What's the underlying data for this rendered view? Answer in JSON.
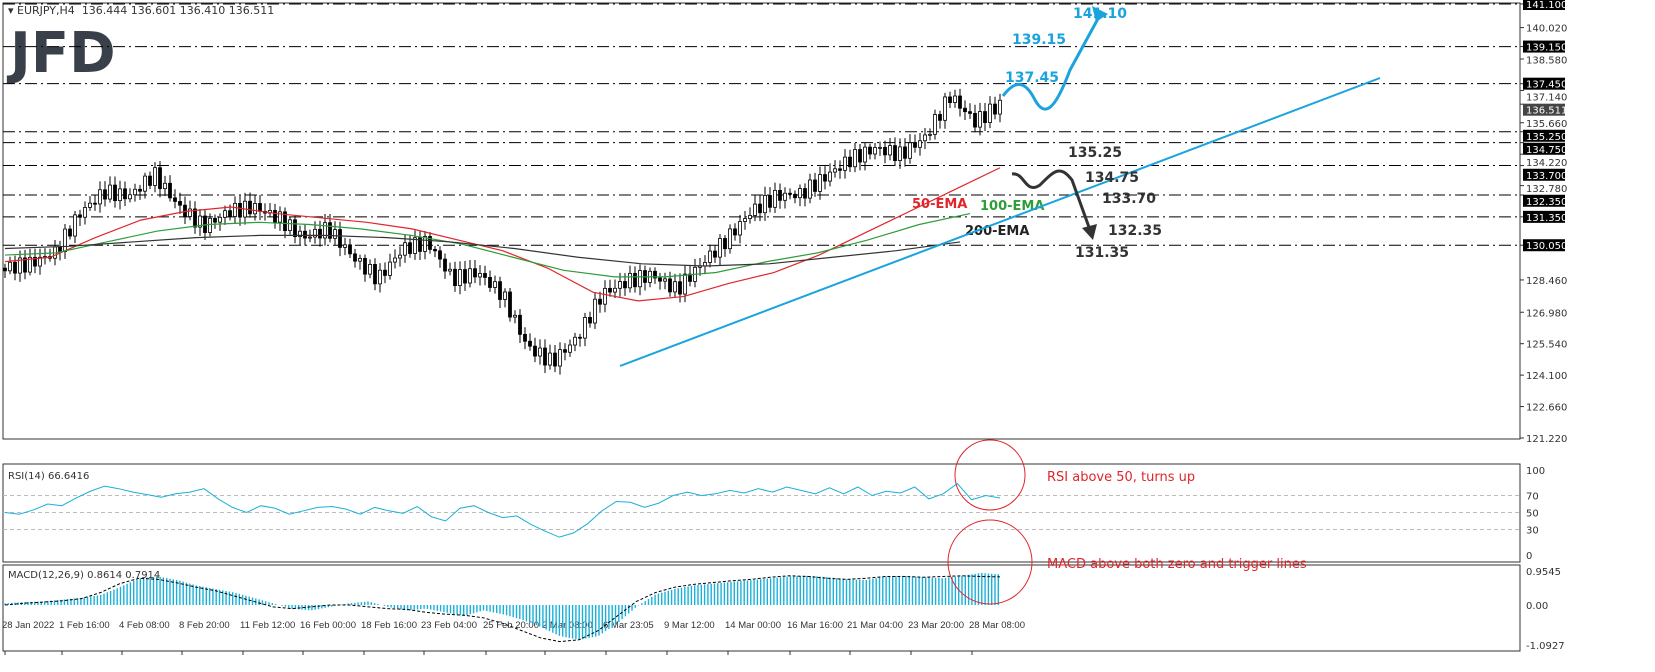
{
  "header": {
    "symbol": "EURJPY,H4",
    "ohlc": "136.444 136.601 136.410 136.511"
  },
  "logo": "JFD",
  "colors": {
    "up": "#000000",
    "ema50": "#e0262b",
    "ema100": "#2e9d3a",
    "ema200": "#333333",
    "trend": "#1aa3dc",
    "bullish": "#1aa3dc",
    "bearish": "#333333",
    "circle": "#e0262b",
    "macd": "#1ab0d8"
  },
  "chart_data": [
    {
      "type": "candlestick",
      "title": "EURJPY,H4",
      "ylim": [
        121.22,
        141.1
      ],
      "y_ticks": [
        "141.100",
        "140.020",
        "139.150",
        "138.580",
        "137.450",
        "137.140",
        "136.511",
        "135.660",
        "135.250",
        "134.750",
        "134.220",
        "133.700",
        "132.780",
        "132.350",
        "131.350",
        "130.050",
        "128.460",
        "126.980",
        "125.540",
        "124.100",
        "122.660",
        "121.220"
      ],
      "x_ticks": [
        "28 Jan 2022",
        "1 Feb 16:00",
        "4 Feb 08:00",
        "8 Feb 20:00",
        "11 Feb 12:00",
        "16 Feb 00:00",
        "18 Feb 16:00",
        "23 Feb 04:00",
        "25 Feb 20:00",
        "2 Mar 08:00",
        "6 Mar 23:05",
        "9 Mar 12:00",
        "14 Mar 00:00",
        "16 Mar 16:00",
        "21 Mar 04:00",
        "23 Mar 20:00",
        "28 Mar 08:00"
      ],
      "levels": [
        141.1,
        139.15,
        137.45,
        135.25,
        134.75,
        133.7,
        132.35,
        131.35,
        130.05
      ],
      "last_price": 136.511,
      "close_path": [
        129.0,
        129.2,
        129.7,
        131.5,
        132.5,
        132.3,
        133.3,
        131.8,
        130.9,
        131.6,
        131.8,
        131.3,
        130.4,
        130.8,
        129.5,
        128.5,
        129.9,
        130.2,
        128.5,
        128.8,
        127.8,
        125.4,
        124.7,
        125.8,
        127.8,
        128.4,
        128.7,
        128.0,
        129.2,
        130.3,
        131.6,
        132.3,
        132.4,
        133.2,
        134.0,
        134.5,
        134.2,
        135.0,
        136.9,
        135.7,
        136.5
      ],
      "ema50": [
        129.3,
        129.5,
        130.4,
        131.2,
        131.6,
        131.8,
        131.5,
        131.3,
        131.1,
        130.8,
        130.3,
        129.8,
        129.0,
        127.9,
        127.5,
        127.7,
        128.3,
        128.8,
        129.6,
        130.6,
        131.6,
        132.6,
        133.6
      ],
      "ema100": [
        129.6,
        129.7,
        130.2,
        130.7,
        131.0,
        131.1,
        131.0,
        130.8,
        130.5,
        130.1,
        129.5,
        128.9,
        128.6,
        128.6,
        128.8,
        129.3,
        129.7,
        130.3,
        131.0,
        131.5
      ],
      "ema200": [
        129.9,
        130.0,
        130.2,
        130.4,
        130.5,
        130.5,
        130.4,
        130.2,
        129.9,
        129.5,
        129.2,
        129.1,
        129.2,
        129.5,
        129.8,
        130.2
      ],
      "ema_labels": [
        "50-EMA",
        "100-EMA",
        "200-EMA"
      ],
      "annotations": {
        "up": [
          "137.45",
          "139.15",
          "141.10"
        ],
        "down": [
          "135.25",
          "134.75",
          "133.70",
          "132.35",
          "131.35"
        ]
      }
    },
    {
      "type": "line",
      "title": "RSI(14) 66.6416",
      "ylim": [
        0,
        100
      ],
      "y_ticks": [
        "100",
        "70",
        "50",
        "30",
        "0"
      ],
      "values": [
        50,
        48,
        53,
        60,
        58,
        67,
        75,
        81,
        78,
        74,
        71,
        68,
        72,
        74,
        78,
        66,
        56,
        50,
        58,
        55,
        48,
        52,
        56,
        57,
        54,
        48,
        56,
        52,
        49,
        57,
        45,
        40,
        55,
        58,
        50,
        44,
        46,
        36,
        28,
        21,
        26,
        37,
        52,
        63,
        62,
        56,
        61,
        70,
        74,
        70,
        72,
        76,
        73,
        78,
        74,
        80,
        76,
        72,
        79,
        72,
        80,
        70,
        75,
        73,
        80,
        66,
        72,
        84,
        65,
        70,
        67
      ],
      "note": "RSI above 50, turns up"
    },
    {
      "type": "bar",
      "title": "MACD(12,26,9) 0.8614 0.7914",
      "ylim": [
        -1.0927,
        0.9545
      ],
      "y_ticks": [
        "0.9545",
        "0.00",
        "-1.0927"
      ],
      "values": [
        0.05,
        0.08,
        0.1,
        0.15,
        0.2,
        0.28,
        0.5,
        0.75,
        0.8,
        0.7,
        0.55,
        0.45,
        0.35,
        0.2,
        0.05,
        -0.1,
        -0.15,
        -0.05,
        0.05,
        0.1,
        -0.05,
        -0.15,
        -0.1,
        -0.2,
        -0.3,
        -0.15,
        -0.25,
        -0.4,
        -0.6,
        -0.85,
        -0.95,
        -0.85,
        -0.5,
        -0.05,
        0.3,
        0.45,
        0.55,
        0.6,
        0.65,
        0.7,
        0.75,
        0.8,
        0.82,
        0.78,
        0.72,
        0.7,
        0.8,
        0.82,
        0.78,
        0.75,
        0.82,
        0.9,
        0.86
      ],
      "signal": [
        0.0,
        0.05,
        0.08,
        0.12,
        0.18,
        0.35,
        0.6,
        0.75,
        0.72,
        0.62,
        0.5,
        0.4,
        0.25,
        0.1,
        -0.05,
        -0.1,
        -0.05,
        0.0,
        0.0,
        -0.05,
        -0.1,
        -0.12,
        -0.2,
        -0.25,
        -0.28,
        -0.35,
        -0.5,
        -0.7,
        -0.9,
        -1.0,
        -0.95,
        -0.7,
        -0.3,
        0.1,
        0.35,
        0.5,
        0.58,
        0.63,
        0.68,
        0.72,
        0.78,
        0.82,
        0.8,
        0.75,
        0.72,
        0.75,
        0.8,
        0.8,
        0.78,
        0.8,
        0.82,
        0.8,
        0.79
      ],
      "note": "MACD above both zero and trigger lines"
    }
  ]
}
